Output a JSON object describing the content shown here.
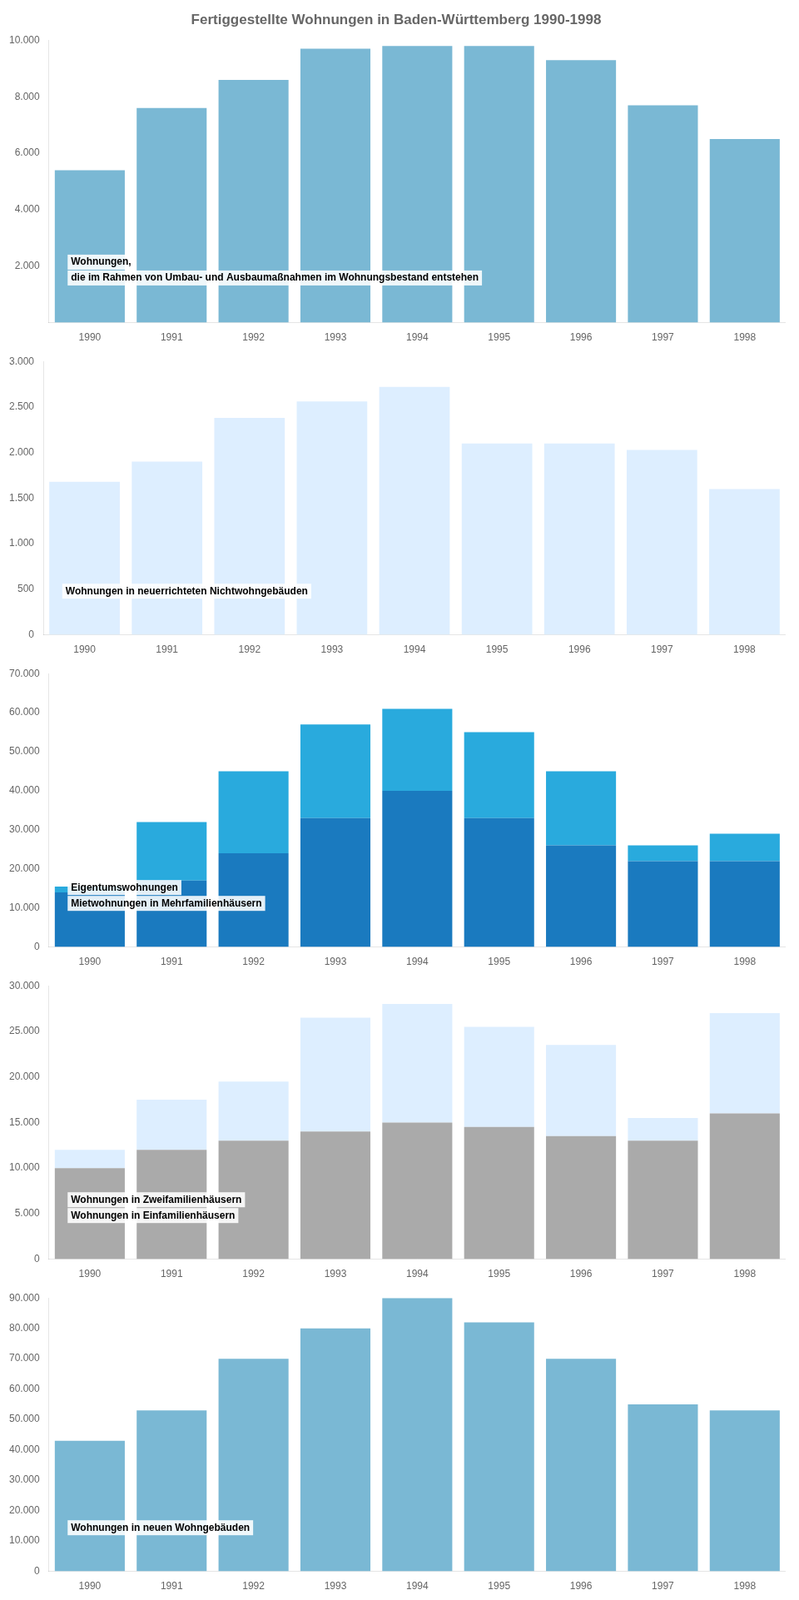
{
  "chart_data": [
    {
      "type": "bar",
      "title": "Fertiggestellte Wohnungen in Baden-Württemberg 1990-1998",
      "annotations": [
        "Wohnungen,",
        "die im Rahmen von Umbau- und Ausbaumaßnahmen im Wohnungsbestand entstehen"
      ],
      "categories": [
        1990,
        1991,
        1992,
        1993,
        1994,
        1995,
        1996,
        1997,
        1998
      ],
      "values": [
        5400,
        7600,
        8600,
        9700,
        9800,
        9800,
        9300,
        7700,
        6500
      ],
      "color": "#7ab8d4",
      "ylim": [
        0,
        10000
      ],
      "yticks": [
        {
          "value": 2000,
          "label": "2.000"
        },
        {
          "value": 4000,
          "label": "4.000"
        },
        {
          "value": 6000,
          "label": "6.000"
        },
        {
          "value": 8000,
          "label": "8.000"
        },
        {
          "value": 10000,
          "label": "10.000"
        }
      ],
      "grid": false
    },
    {
      "type": "bar",
      "annotations": [
        "Wohnungen in neuerrichteten Nichtwohngebäuden"
      ],
      "categories": [
        1990,
        1991,
        1992,
        1993,
        1994,
        1995,
        1996,
        1997,
        1998
      ],
      "values": [
        1680,
        1900,
        2380,
        2560,
        2720,
        2100,
        2100,
        2030,
        1600
      ],
      "color": "#ddeeff",
      "ylim": [
        0,
        3000
      ],
      "yticks": [
        0,
        500,
        {
          "value": 1000,
          "label": "1.000"
        },
        {
          "value": 1500,
          "label": "1.500"
        },
        {
          "value": 2000,
          "label": "2.000"
        },
        {
          "value": 2500,
          "label": "2.500"
        },
        {
          "value": 3000,
          "label": "3.000"
        }
      ],
      "grid": false
    },
    {
      "type": "bar",
      "stacked": true,
      "categories": [
        1990,
        1991,
        1992,
        1993,
        1994,
        1995,
        1996,
        1997,
        1998
      ],
      "series": [
        {
          "name": "Mietwohnungen in Mehrfamilienhäusern",
          "color": "#1a7abf",
          "values": [
            14000,
            17000,
            24000,
            33000,
            40000,
            33000,
            26000,
            22000,
            22000
          ]
        },
        {
          "name": "Eigentumswohnungen",
          "color": "#29aadd",
          "values": [
            1500,
            15000,
            21000,
            24000,
            21000,
            22000,
            19000,
            4000,
            7000
          ]
        }
      ],
      "ylim": [
        0,
        70000
      ],
      "yticks": [
        0,
        {
          "value": 10000,
          "label": "10.000"
        },
        {
          "value": 20000,
          "label": "20.000"
        },
        {
          "value": 30000,
          "label": "30.000"
        },
        {
          "value": 40000,
          "label": "40.000"
        },
        {
          "value": 50000,
          "label": "50.000"
        },
        {
          "value": 60000,
          "label": "60.000"
        },
        {
          "value": 70000,
          "label": "70.000"
        }
      ],
      "grid": false
    },
    {
      "type": "bar",
      "stacked": true,
      "categories": [
        1990,
        1991,
        1992,
        1993,
        1994,
        1995,
        1996,
        1997,
        1998
      ],
      "series": [
        {
          "name": "Wohnungen in Einfamilienhäusern",
          "color": "#aaaaaa",
          "values": [
            10000,
            12000,
            13000,
            14000,
            15000,
            14500,
            13500,
            13000,
            16000
          ]
        },
        {
          "name": "Wohnungen in Zweifamilienhäusern",
          "color": "#ddeeff",
          "values": [
            2000,
            5500,
            6500,
            12500,
            13000,
            11000,
            10000,
            2500,
            11000
          ]
        }
      ],
      "ylim": [
        0,
        30000
      ],
      "yticks": [
        0,
        {
          "value": 5000,
          "label": "5.000"
        },
        {
          "value": 10000,
          "label": "10.000"
        },
        {
          "value": 15000,
          "label": "15.000"
        },
        {
          "value": 20000,
          "label": "20.000"
        },
        {
          "value": 25000,
          "label": "25.000"
        },
        {
          "value": 30000,
          "label": "30.000"
        }
      ],
      "grid": false
    },
    {
      "type": "bar",
      "annotations": [
        "Wohnungen in neuen Wohngebäuden"
      ],
      "categories": [
        1990,
        1991,
        1992,
        1993,
        1994,
        1995,
        1996,
        1997,
        1998
      ],
      "values": [
        43000,
        53000,
        70000,
        80000,
        90000,
        82000,
        70000,
        55000,
        53000
      ],
      "color": "#7ab8d4",
      "ylim": [
        0,
        90000
      ],
      "yticks": [
        0,
        {
          "value": 10000,
          "label": "10.000"
        },
        {
          "value": 20000,
          "label": "20.000"
        },
        {
          "value": 30000,
          "label": "30.000"
        },
        {
          "value": 40000,
          "label": "40.000"
        },
        {
          "value": 50000,
          "label": "50.000"
        },
        {
          "value": 60000,
          "label": "60.000"
        },
        {
          "value": 70000,
          "label": "70.000"
        },
        {
          "value": 80000,
          "label": "80.000"
        },
        {
          "value": 90000,
          "label": "90.000"
        }
      ],
      "grid": false
    }
  ]
}
